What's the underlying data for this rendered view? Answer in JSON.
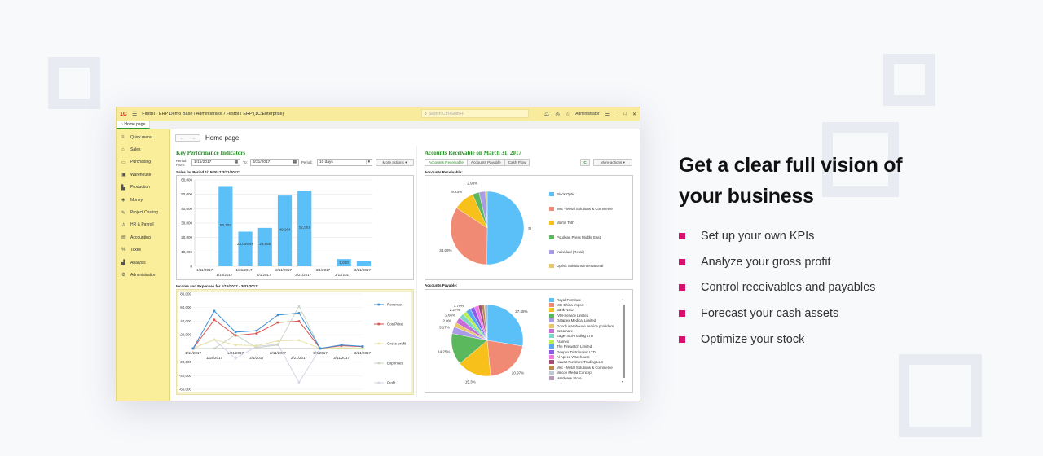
{
  "window": {
    "title": "FirstBIT ERP Demo Base / Administrator / FirstBIT ERP  (1C:Enterprise)",
    "logo": "1C",
    "search_placeholder": "Search Ctrl+Shift+F",
    "user": "Administrator",
    "tab": "Home page"
  },
  "sidebar": {
    "items": [
      {
        "label": "Quick menu",
        "icon": "≡"
      },
      {
        "label": "Sales",
        "icon": "⌂"
      },
      {
        "label": "Purchasing",
        "icon": "▭"
      },
      {
        "label": "Warehouse",
        "icon": "▣"
      },
      {
        "label": "Production",
        "icon": "▙"
      },
      {
        "label": "Money",
        "icon": "◈"
      },
      {
        "label": "Project Costing",
        "icon": "✎"
      },
      {
        "label": "HR & Payroll",
        "icon": "♙"
      },
      {
        "label": "Accounting",
        "icon": "▤"
      },
      {
        "label": "Taxes",
        "icon": "%"
      },
      {
        "label": "Analysis",
        "icon": "▟"
      },
      {
        "label": "Administration",
        "icon": "⚙"
      }
    ]
  },
  "page": {
    "title": "Home page",
    "back": "←",
    "forward": "→"
  },
  "kpi": {
    "title": "Key Performance Indicators",
    "period_from_label": "Period From:",
    "from": "1/15/2017",
    "to_label": "To:",
    "to": "3/31/2017",
    "period_label": "Period:",
    "period": "10 days",
    "more_actions": "More actions ▾",
    "sales_title": "Sales for Period 1/15/2017 3/31/2017:",
    "income_title": "Income and Expenses for 1/15/2017 - 3/31/2017:"
  },
  "ar": {
    "title": "Accounts Receivable on March 31, 2017",
    "tabs": [
      "Accounts Receivable",
      "Accounts Payable",
      "Cash Flow"
    ],
    "refresh": "C",
    "more_actions": "More actions ▾",
    "receivable_label": "Accounts Receivable:",
    "payable_label": "Accounts Payable:"
  },
  "marketing": {
    "headline_line1": "Get a clear full vision of",
    "headline_line2": "your business",
    "bullets": [
      "Set up your own KPIs",
      "Analyze your gross profit",
      "Control receivables and payables",
      "Forecast your cash assets",
      "Optimize your stock"
    ],
    "bullet_color": "#d6106d"
  },
  "chart_data": [
    {
      "type": "bar",
      "title": "Sales for Period 1/15/2017 3/31/2017:",
      "categories": [
        "1/11/2017",
        "1/15/2017",
        "1/21/2017",
        "2/1/2017",
        "2/11/2017",
        "2/21/2017",
        "3/1/2017",
        "3/11/2017",
        "3/21/2017"
      ],
      "values": [
        0,
        55203,
        24049.48,
        26685,
        49164,
        52561,
        0,
        5000,
        3500
      ],
      "data_labels": [
        "",
        "55,203",
        "24,049.48",
        "26,685",
        "49,164",
        "52,561",
        "",
        "5,000",
        ""
      ],
      "ylim": [
        0,
        60000
      ],
      "yticks": [
        "0",
        "10,000",
        "20,000",
        "30,000",
        "40,000",
        "50,000",
        "60,000"
      ],
      "color": "#5bc0f8",
      "grid": true
    },
    {
      "type": "line",
      "title": "Income and Expenses for 1/15/2017 - 3/31/2017:",
      "x": [
        "1/11/2017",
        "1/15/2017",
        "1/21/2017",
        "2/1/2017",
        "2/11/2017",
        "2/21/2017",
        "3/1/2017",
        "3/11/2017",
        "3/21/2017"
      ],
      "series": [
        {
          "name": "Revenue",
          "color": "#3a8fd6",
          "values": [
            0,
            55000,
            24000,
            26000,
            49000,
            52000,
            0,
            5000,
            3000
          ]
        },
        {
          "name": "CostPrice",
          "color": "#d9534f",
          "values": [
            0,
            42000,
            19000,
            22000,
            38000,
            40000,
            0,
            4000,
            2500
          ]
        },
        {
          "name": "Gross profit",
          "color": "#e8e2a8",
          "values": [
            0,
            13000,
            5000,
            4000,
            11000,
            12000,
            0,
            1000,
            500
          ]
        },
        {
          "name": "Expenses",
          "color": "#c9d6c4",
          "values": [
            0,
            0,
            20000,
            1000,
            5000,
            62000,
            0,
            0,
            0
          ]
        },
        {
          "name": "Profit",
          "color": "#d4d4e8",
          "values": [
            0,
            13000,
            -15000,
            3000,
            6000,
            -50000,
            0,
            1000,
            500
          ]
        }
      ],
      "ylim": [
        -60000,
        80000
      ],
      "yticks": [
        "-60,000",
        "-40,000",
        "-20,000",
        "",
        "20,000",
        "40,000",
        "60,000",
        "80,000"
      ],
      "legend_position": "right"
    },
    {
      "type": "pie",
      "title": "Accounts Receivable:",
      "labels": [
        "Block Optic",
        "Msc - Metal Solutions & Commerce",
        "Martin Toth",
        "Pourkian Press Middle East",
        "Individual (Retail)",
        "Oprisk Solutions International"
      ],
      "values": [
        50.15,
        34.08,
        9.23,
        2.93,
        2.8,
        0.81
      ],
      "data_labels": [
        "50.15%",
        "34.08%",
        "9.23%",
        "2.93%",
        "",
        ""
      ],
      "colors": [
        "#5bc0f8",
        "#f08a75",
        "#f7c01b",
        "#5cb85c",
        "#a99be8",
        "#e8c76a"
      ]
    },
    {
      "type": "pie",
      "title": "Accounts Payable:",
      "labels": [
        "Royal Furniture",
        "MG China Import",
        "Bank NSD",
        "IVM-Service Limited",
        "Datapex Medical Limited",
        "Goody warehouse service providers",
        "Secamare",
        "Eage-Tool-Trading LTD",
        "Aramex",
        "The Firewatch Limited",
        "Geepex Distribution LTD",
        "Al Apeez Warehouse",
        "Kuwait Furniture Trading LLC",
        "Msc - Metal Solutions & Commerce",
        "Mecon Media Concept",
        "Hardware Store"
      ],
      "values": [
        27.55,
        20.97,
        15.3,
        14.25,
        3.17,
        2.0,
        2.66,
        2.27,
        1.79,
        2.2,
        2.0,
        1.8,
        1.5,
        1.2,
        0.7,
        0.64
      ],
      "data_labels": [
        "27.55%",
        "20.97%",
        "15.3%",
        "14.25%",
        "3.17%",
        "2.0%",
        "2.66%",
        "2.27%",
        "1.79%",
        "",
        "",
        "",
        "",
        "",
        "",
        ""
      ],
      "colors": [
        "#5bc0f8",
        "#f08a75",
        "#f7c01b",
        "#5cb85c",
        "#a99be8",
        "#e8c76a",
        "#c86ad8",
        "#7ed6c8",
        "#b8f050",
        "#58a8f0",
        "#8a5ce8",
        "#f078e8",
        "#a05078",
        "#b88a50",
        "#c0c8d8",
        "#b89ab8"
      ]
    }
  ]
}
